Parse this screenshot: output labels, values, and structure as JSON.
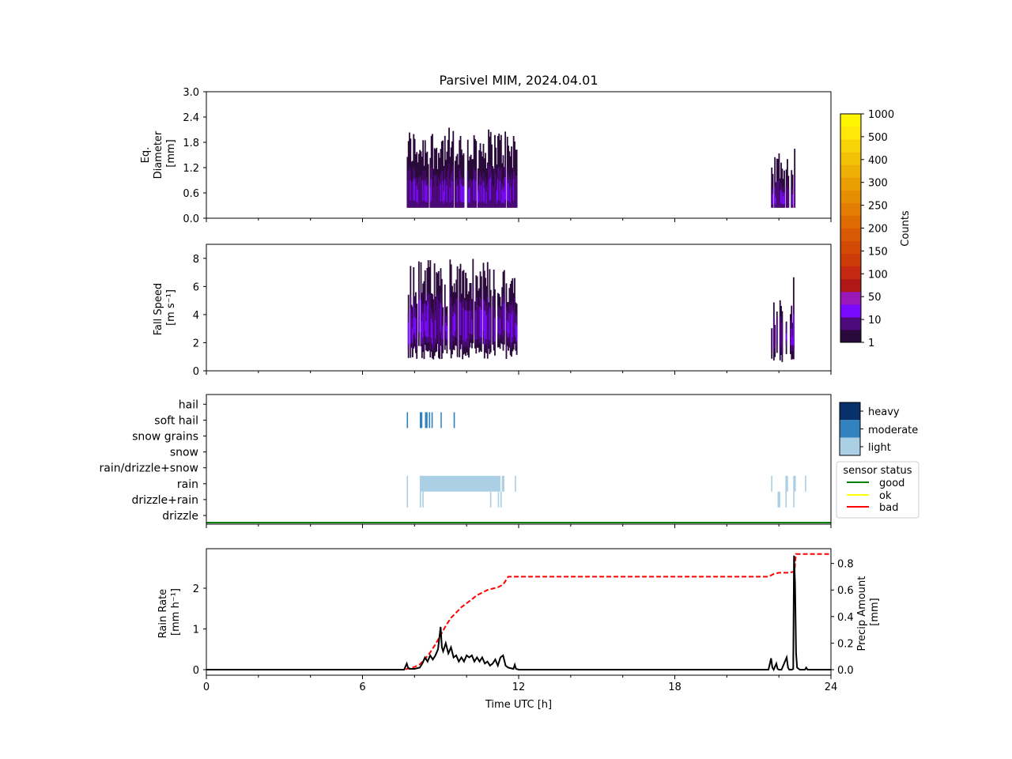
{
  "title": "Parsivel MIM, 2024.04.01",
  "colors": {
    "counts_scale": [
      "#2a0a3a",
      "#4c0a7a",
      "#7a0aff",
      "#9a18b8",
      "#b01818",
      "#c42810",
      "#cc3a08",
      "#d24a06",
      "#d85a04",
      "#de6a02",
      "#e27c02",
      "#e68e02",
      "#ea9e02",
      "#eeb004",
      "#f2c206",
      "#f6d408",
      "#ffe80a",
      "#fff400"
    ],
    "heavy": "#08306b",
    "moderate": "#3182bd",
    "light": "#abd0e6",
    "rain_rate_line": "#000000",
    "precip_line": "#ff0000",
    "status_good": "#008000",
    "status_ok": "#ffff00",
    "status_bad": "#ff0000"
  },
  "panel1": {
    "ylabel_lines": [
      "Eq.",
      "Diameter",
      "[mm]"
    ],
    "yticks": [
      "0.0",
      "0.6",
      "1.2",
      "1.8",
      "2.4",
      "3.0"
    ]
  },
  "panel2": {
    "ylabel_lines": [
      "Fall Speed",
      "[m s⁻¹]"
    ],
    "yticks": [
      "0",
      "2",
      "4",
      "6",
      "8"
    ]
  },
  "colorbar": {
    "label": "Counts",
    "ticks": [
      "1",
      "10",
      "50",
      "100",
      "150",
      "200",
      "250",
      "300",
      "400",
      "500",
      "1000"
    ]
  },
  "panel3": {
    "categories": [
      "drizzle",
      "drizzle+rain",
      "rain",
      "rain/drizzle+snow",
      "snow",
      "snow grains",
      "soft hail",
      "hail"
    ],
    "intensity_legend": [
      "heavy",
      "moderate",
      "light"
    ],
    "status_legend": {
      "title": "sensor status",
      "items": [
        "good",
        "ok",
        "bad"
      ]
    }
  },
  "panel4": {
    "ylabel_left_lines": [
      "Rain Rate",
      "[mm h⁻¹]"
    ],
    "ylabel_right_lines": [
      "Precip Amount",
      "[mm]"
    ],
    "yticks_left": [
      "0",
      "1",
      "2"
    ],
    "yticks_right": [
      "0.0",
      "0.2",
      "0.4",
      "0.6",
      "0.8"
    ],
    "xlabel": "Time UTC [h]",
    "xticks": [
      "0",
      "6",
      "12",
      "18",
      "24"
    ]
  },
  "chart_data": [
    {
      "type": "heatmap",
      "title": "Parsivel MIM, 2024.04.01",
      "ylabel": "Eq. Diameter [mm]",
      "xlim": [
        0,
        24
      ],
      "ylim": [
        0,
        3.0
      ],
      "colorbar_label": "Counts",
      "events": [
        {
          "x_start": 7.7,
          "x_end": 11.9,
          "y_min": 0.25,
          "y_max": 2.25
        },
        {
          "x_start": 21.7,
          "x_end": 22.6,
          "y_min": 0.25,
          "y_max": 2.25
        }
      ]
    },
    {
      "type": "heatmap",
      "ylabel": "Fall Speed [m s⁻¹]",
      "xlim": [
        0,
        24
      ],
      "ylim": [
        0,
        9
      ],
      "events": [
        {
          "x_start": 7.7,
          "x_end": 11.9,
          "y_min": 0.5,
          "y_max": 8.0
        },
        {
          "x_start": 21.7,
          "x_end": 22.6,
          "y_min": 0.5,
          "y_max": 7.0
        }
      ]
    },
    {
      "type": "timeline",
      "categories": [
        "drizzle",
        "drizzle+rain",
        "rain",
        "rain/drizzle+snow",
        "snow",
        "snow grains",
        "soft hail",
        "hail"
      ],
      "xlim": [
        0,
        24
      ],
      "segments": [
        {
          "category": "soft hail",
          "intensity": "moderate",
          "start": 7.7,
          "end": 7.75
        },
        {
          "category": "soft hail",
          "intensity": "moderate",
          "start": 8.2,
          "end": 8.3
        },
        {
          "category": "soft hail",
          "intensity": "moderate",
          "start": 8.4,
          "end": 8.5
        },
        {
          "category": "soft hail",
          "intensity": "moderate",
          "start": 8.55,
          "end": 8.6
        },
        {
          "category": "soft hail",
          "intensity": "moderate",
          "start": 8.65,
          "end": 8.7
        },
        {
          "category": "soft hail",
          "intensity": "moderate",
          "start": 9.0,
          "end": 9.04
        },
        {
          "category": "soft hail",
          "intensity": "moderate",
          "start": 9.5,
          "end": 9.55
        },
        {
          "category": "rain",
          "intensity": "light",
          "start": 7.7,
          "end": 7.75
        },
        {
          "category": "rain",
          "intensity": "light",
          "start": 8.2,
          "end": 11.3
        },
        {
          "category": "rain",
          "intensity": "light",
          "start": 11.35,
          "end": 11.45
        },
        {
          "category": "rain",
          "intensity": "light",
          "start": 11.85,
          "end": 11.9
        },
        {
          "category": "rain",
          "intensity": "light",
          "start": 21.7,
          "end": 21.75
        },
        {
          "category": "rain",
          "intensity": "light",
          "start": 22.25,
          "end": 22.35
        },
        {
          "category": "rain",
          "intensity": "light",
          "start": 22.55,
          "end": 22.65
        },
        {
          "category": "rain",
          "intensity": "light",
          "start": 23.0,
          "end": 23.05
        },
        {
          "category": "drizzle+rain",
          "intensity": "light",
          "start": 7.7,
          "end": 7.75
        },
        {
          "category": "drizzle+rain",
          "intensity": "light",
          "start": 8.2,
          "end": 8.25
        },
        {
          "category": "drizzle+rain",
          "intensity": "light",
          "start": 8.3,
          "end": 8.35
        },
        {
          "category": "drizzle+rain",
          "intensity": "light",
          "start": 10.9,
          "end": 10.95
        },
        {
          "category": "drizzle+rain",
          "intensity": "light",
          "start": 11.2,
          "end": 11.25
        },
        {
          "category": "drizzle+rain",
          "intensity": "light",
          "start": 11.3,
          "end": 11.35
        },
        {
          "category": "drizzle+rain",
          "intensity": "light",
          "start": 21.95,
          "end": 22.05
        },
        {
          "category": "drizzle+rain",
          "intensity": "light",
          "start": 22.25,
          "end": 22.3
        },
        {
          "category": "drizzle+rain",
          "intensity": "light",
          "start": 22.55,
          "end": 22.6
        }
      ],
      "sensor_status": [
        {
          "status": "good",
          "start": 0,
          "end": 24
        }
      ]
    },
    {
      "type": "line",
      "xlabel": "Time UTC [h]",
      "xlim": [
        0,
        24
      ],
      "axes": [
        {
          "ylabel": "Rain Rate [mm h⁻¹]",
          "ylim": [
            0,
            2.9
          ]
        },
        {
          "ylabel": "Precip Amount [mm]",
          "ylim": [
            0,
            0.9
          ]
        }
      ],
      "series": [
        {
          "axis": "left",
          "x": [
            0,
            7.6,
            7.7,
            7.75,
            7.8,
            8.0,
            8.2,
            8.3,
            8.4,
            8.5,
            8.6,
            8.7,
            8.8,
            8.9,
            9.0,
            9.05,
            9.1,
            9.2,
            9.3,
            9.4,
            9.5,
            9.6,
            9.7,
            9.8,
            9.9,
            10.0,
            10.1,
            10.2,
            10.3,
            10.4,
            10.5,
            10.6,
            10.7,
            10.8,
            10.9,
            11.0,
            11.1,
            11.2,
            11.3,
            11.4,
            11.5,
            11.6,
            11.8,
            11.85,
            11.9,
            12.0,
            21.6,
            21.7,
            21.75,
            21.8,
            21.9,
            21.95,
            22.0,
            22.1,
            22.3,
            22.35,
            22.4,
            22.5,
            22.55,
            22.58,
            22.62,
            22.66,
            22.7,
            22.8,
            23.0,
            23.05,
            23.1,
            24
          ],
          "y": [
            0,
            0,
            0.15,
            0.05,
            0.02,
            0.02,
            0.05,
            0.15,
            0.3,
            0.2,
            0.35,
            0.25,
            0.35,
            0.5,
            1.05,
            0.55,
            0.45,
            0.65,
            0.4,
            0.55,
            0.3,
            0.35,
            0.2,
            0.3,
            0.2,
            0.35,
            0.3,
            0.35,
            0.2,
            0.3,
            0.2,
            0.3,
            0.15,
            0.2,
            0.1,
            0.15,
            0.25,
            0.1,
            0.3,
            0.35,
            0.1,
            0.05,
            0.02,
            0.12,
            0.02,
            0,
            0,
            0.28,
            0.05,
            0,
            0.15,
            0.02,
            0,
            0,
            0.3,
            0.05,
            0,
            0,
            0.02,
            2.8,
            2.1,
            0.4,
            0.05,
            0,
            0,
            0.05,
            0,
            0
          ]
        },
        {
          "axis": "right",
          "x": [
            0,
            7.6,
            7.8,
            8.0,
            8.2,
            8.4,
            8.6,
            8.8,
            9.0,
            9.2,
            9.4,
            9.6,
            9.8,
            10.0,
            10.2,
            10.4,
            10.6,
            10.8,
            11.0,
            11.2,
            11.4,
            11.6,
            12.0,
            21.6,
            21.8,
            22.0,
            22.4,
            22.6,
            22.65,
            24
          ],
          "y": [
            0,
            0,
            0.01,
            0.02,
            0.04,
            0.08,
            0.13,
            0.19,
            0.26,
            0.33,
            0.39,
            0.43,
            0.47,
            0.5,
            0.53,
            0.56,
            0.58,
            0.6,
            0.61,
            0.62,
            0.64,
            0.7,
            0.7,
            0.7,
            0.72,
            0.73,
            0.73,
            0.74,
            0.87,
            0.87
          ]
        }
      ]
    }
  ]
}
